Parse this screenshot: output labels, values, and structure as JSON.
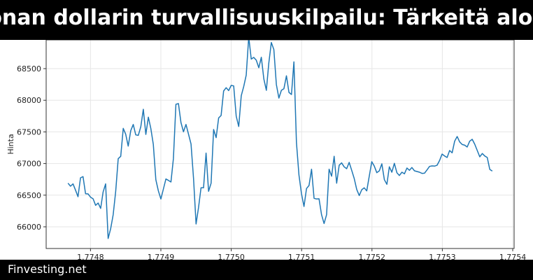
{
  "header": {
    "title": "oonan dollarin turvallisuuskilpailu: Tärkeitä aloitt"
  },
  "footer": {
    "brand": "Finvesting.net"
  },
  "chart_data": {
    "type": "line",
    "title": "oonan dollarin turvallisuuskilpailu: Tärkeitä aloitt",
    "xlabel": "",
    "ylabel": "Hinta",
    "xlim": [
      1.774737,
      1.775402
    ],
    "ylim": [
      65657,
      68954
    ],
    "x_ticks": [
      1.7748,
      1.7749,
      1.775,
      1.7751,
      1.7752,
      1.7753,
      1.7754
    ],
    "x_tick_labels": [
      "1.7748",
      "1.7749",
      "1.7750",
      "1.7751",
      "1.7752",
      "1.7753",
      "1.7754"
    ],
    "y_ticks": [
      66000,
      66500,
      67000,
      67500,
      68000,
      68500
    ],
    "y_tick_labels": [
      "66000",
      "66500",
      "67000",
      "67500",
      "68000",
      "68500"
    ],
    "grid": true,
    "line_color": "#1f77b4",
    "x_first": 1.774768,
    "x_last": 1.775371,
    "series": [
      {
        "values": [
          66689,
          66642,
          66678,
          66579,
          66476,
          66774,
          66793,
          66523,
          66520,
          66468,
          66442,
          66340,
          66376,
          66291,
          66550,
          66678,
          65815,
          65970,
          66191,
          66560,
          67076,
          67114,
          67556,
          67464,
          67276,
          67519,
          67618,
          67453,
          67445,
          67582,
          67858,
          67460,
          67733,
          67556,
          67301,
          66745,
          66567,
          66439,
          66597,
          66756,
          66733,
          66708,
          67076,
          67936,
          67947,
          67648,
          67501,
          67618,
          67464,
          67309,
          66763,
          66044,
          66302,
          66616,
          66616,
          67165,
          66561,
          66689,
          67538,
          67409,
          67722,
          67759,
          68146,
          68198,
          68153,
          68235,
          68227,
          67748,
          67585,
          68071,
          68220,
          68397,
          69000,
          68651,
          68677,
          68633,
          68515,
          68680,
          68337,
          68157,
          68588,
          68913,
          68802,
          68249,
          68035,
          68157,
          68183,
          68386,
          68124,
          68091,
          68607,
          67334,
          66819,
          66524,
          66321,
          66605,
          66653,
          66910,
          66450,
          66439,
          66442,
          66191,
          66052,
          66191,
          66910,
          66800,
          67114,
          66689,
          66973,
          67010,
          66948,
          66918,
          67018,
          66893,
          66763,
          66590,
          66494,
          66586,
          66616,
          66567,
          66800,
          67029,
          66959,
          66855,
          66885,
          66996,
          66745,
          66671,
          66948,
          66863,
          67003,
          66855,
          66811,
          66863,
          66837,
          66929,
          66893,
          66937,
          66885,
          66874,
          66863,
          66844,
          66848,
          66899,
          66955,
          66963,
          66959,
          66973,
          67047,
          67150,
          67120,
          67095,
          67206,
          67169,
          67353,
          67427,
          67342,
          67301,
          67290,
          67261,
          67353,
          67383,
          67305,
          67206,
          67106,
          67158,
          67120,
          67095,
          66907,
          66881
        ]
      }
    ]
  }
}
